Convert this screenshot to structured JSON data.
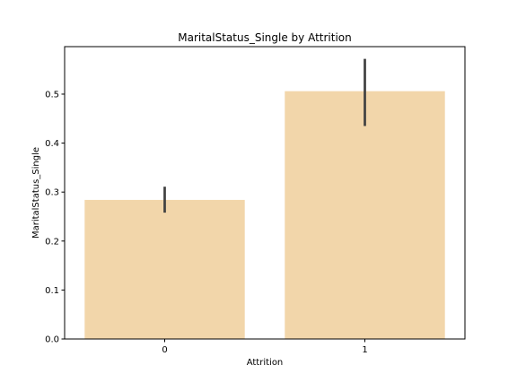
{
  "chart_data": {
    "type": "bar",
    "title": "MaritalStatus_Single by Attrition",
    "xlabel": "Attrition",
    "ylabel": "MaritalStatus_Single",
    "categories": [
      "0",
      "1"
    ],
    "values": [
      0.284,
      0.506
    ],
    "error_bars": [
      {
        "low": 0.258,
        "high": 0.311
      },
      {
        "low": 0.435,
        "high": 0.572
      }
    ],
    "ylim": [
      0,
      0.597
    ],
    "yticks": [
      0.0,
      0.1,
      0.2,
      0.3,
      0.4,
      0.5
    ],
    "ytick_labels": [
      "0.0",
      "0.1",
      "0.2",
      "0.3",
      "0.4",
      "0.5"
    ],
    "grid": false,
    "colors": {
      "bar": "#f2d6aa",
      "error": "#404040",
      "axis": "#000000"
    }
  }
}
